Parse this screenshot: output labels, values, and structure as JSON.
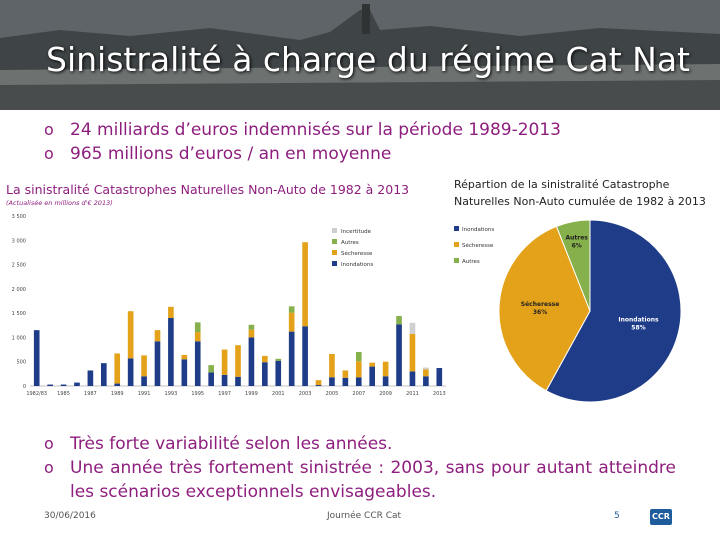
{
  "slide": {
    "title": "Sinistralité à charge du régime Cat Nat",
    "top_bullets": [
      "24 milliards d’euros indemnisés sur la période 1989-2013",
      "965 millions d’euros / an en moyenne"
    ],
    "bottom_bullets": [
      "Très forte variabilité selon les années.",
      "Une année très fortement sinistrée : 2003, sans pour autant atteindre les scénarios exceptionnels envisageables."
    ],
    "bullet_glyph": "o",
    "footer": {
      "date": "30/06/2016",
      "event": "Journée CCR Cat",
      "page": "5",
      "logo": "CCR"
    },
    "accent_color": "#8e1e7e"
  },
  "chart_data": [
    {
      "type": "bar",
      "stacked": true,
      "title": "La sinistralité Catastrophes Naturelles Non-Auto de 1982 à 2013",
      "subtitle": "(Actualisée en millions d'€ 2013)",
      "ylim": [
        0,
        3500
      ],
      "yticks": [
        0,
        500,
        1000,
        1500,
        2000,
        2500,
        3000,
        3500
      ],
      "ytick_labels": [
        "0",
        "500",
        "1 000",
        "1 500",
        "2 000",
        "2 500",
        "3 000",
        "3 500"
      ],
      "categories": [
        "1982/83",
        "1984",
        "1985",
        "1986",
        "1987",
        "1988",
        "1989",
        "1990",
        "1991",
        "1992",
        "1993",
        "1994",
        "1995",
        "1996",
        "1997",
        "1998",
        "1999",
        "2000",
        "2001",
        "2002",
        "2003",
        "2004",
        "2005",
        "2006",
        "2007",
        "2008",
        "2009",
        "2010",
        "2011",
        "2012",
        "2013"
      ],
      "xtick_labels": [
        "1982/83",
        "1985",
        "1987",
        "1989",
        "1991",
        "1993",
        "1995",
        "1997",
        "1999",
        "2001",
        "2003",
        "2005",
        "2007",
        "2009",
        "2011",
        "2013"
      ],
      "legend": [
        "Incertitude",
        "Autres",
        "Sécheresse",
        "Inondations"
      ],
      "legend_position": "top-right",
      "grid": false,
      "series": [
        {
          "name": "Inondations",
          "color": "#1f3c88",
          "values": [
            1150,
            30,
            30,
            70,
            320,
            470,
            50,
            570,
            200,
            920,
            1400,
            550,
            920,
            280,
            230,
            190,
            1000,
            490,
            520,
            1120,
            1230,
            20,
            180,
            170,
            180,
            400,
            200,
            1270,
            300,
            200,
            370
          ]
        },
        {
          "name": "Sécheresse",
          "color": "#e3a21a",
          "values": [
            0,
            0,
            0,
            0,
            0,
            0,
            620,
            970,
            430,
            230,
            230,
            90,
            190,
            0,
            520,
            650,
            160,
            130,
            0,
            390,
            1730,
            100,
            480,
            150,
            330,
            80,
            300,
            0,
            770,
            140,
            0
          ]
        },
        {
          "name": "Autres",
          "color": "#86b04b",
          "values": [
            0,
            0,
            0,
            0,
            0,
            0,
            0,
            0,
            0,
            0,
            0,
            0,
            200,
            150,
            0,
            0,
            100,
            0,
            40,
            130,
            0,
            0,
            0,
            0,
            190,
            0,
            0,
            170,
            0,
            0,
            0
          ]
        },
        {
          "name": "Incertitude",
          "color": "#cfcfcf",
          "values": [
            0,
            0,
            0,
            0,
            0,
            0,
            0,
            0,
            0,
            0,
            0,
            0,
            0,
            0,
            0,
            0,
            0,
            0,
            0,
            0,
            0,
            0,
            0,
            0,
            0,
            0,
            0,
            0,
            230,
            40,
            0
          ]
        }
      ]
    },
    {
      "type": "pie",
      "title": "Répartion de la sinistralité Catastrophe Naturelles Non-Auto cumulée de 1982 à 2013",
      "legend": [
        "Inondations",
        "Sécheresse",
        "Autres"
      ],
      "legend_position": "left",
      "slices": [
        {
          "label": "Inondations",
          "value": 58,
          "display": "58%",
          "color": "#1f3c88",
          "label_color": "#ffffff"
        },
        {
          "label": "Sécheresse",
          "value": 36,
          "display": "36%",
          "color": "#e3a21a",
          "label_color": "#222222"
        },
        {
          "label": "Autres",
          "value": 6,
          "display": "6%",
          "color": "#86b04b",
          "label_color": "#222222"
        }
      ]
    }
  ]
}
